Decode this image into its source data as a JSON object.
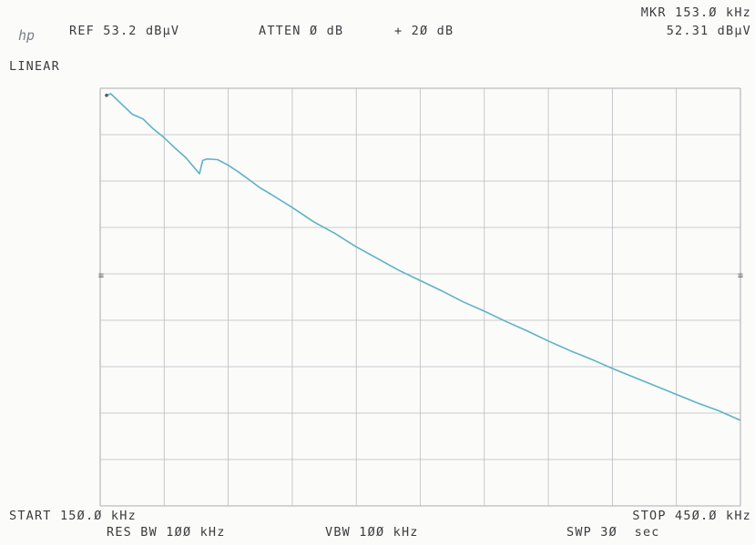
{
  "header": {
    "logo": "hp",
    "ref": "REF 53.2 dBµV",
    "atten": "ATTEN Ø dB",
    "offset": "+ 2Ø dB",
    "marker_freq": "MKR 153.Ø kHz",
    "marker_level": "52.31 dBµV",
    "scale": "LINEAR"
  },
  "footer": {
    "start": "START 15Ø.Ø kHz",
    "stop": "STOP 45Ø.Ø kHz",
    "res_bw": "RES BW 1ØØ kHz",
    "vbw": "VBW 1ØØ kHz",
    "swp": "SWP 3Ø  sec"
  },
  "chart_data": {
    "type": "line",
    "title": "",
    "xlabel": "",
    "ylabel": "",
    "x_unit": "kHz",
    "y_unit": "dBµV",
    "xlim": [
      150,
      450
    ],
    "ylim": [
      0,
      53.2
    ],
    "y_scale": "linear",
    "grid": true,
    "x_divisions": 10,
    "y_divisions": 9,
    "trace_color": "#5fb2c6",
    "grid_color": "#b9bcc2",
    "series": [
      {
        "name": "",
        "x": [
          153,
          155,
          160,
          165,
          170,
          175,
          180,
          185,
          190,
          195,
          196.5,
          198,
          200,
          205,
          210,
          215,
          220,
          225,
          230,
          240,
          250,
          260,
          270,
          280,
          290,
          300,
          310,
          320,
          330,
          340,
          350,
          360,
          370,
          380,
          390,
          400,
          410,
          420,
          430,
          440,
          450
        ],
        "y": [
          52.3,
          52.5,
          51.2,
          49.9,
          49.3,
          48.0,
          46.9,
          45.6,
          44.4,
          42.8,
          42.3,
          44.0,
          44.2,
          44.1,
          43.4,
          42.5,
          41.5,
          40.5,
          39.7,
          38.0,
          36.2,
          34.7,
          33.0,
          31.5,
          30.0,
          28.7,
          27.4,
          26.0,
          24.8,
          23.5,
          22.3,
          21.0,
          19.8,
          18.7,
          17.5,
          16.4,
          15.3,
          14.2,
          13.1,
          12.1,
          10.9
        ]
      }
    ]
  }
}
